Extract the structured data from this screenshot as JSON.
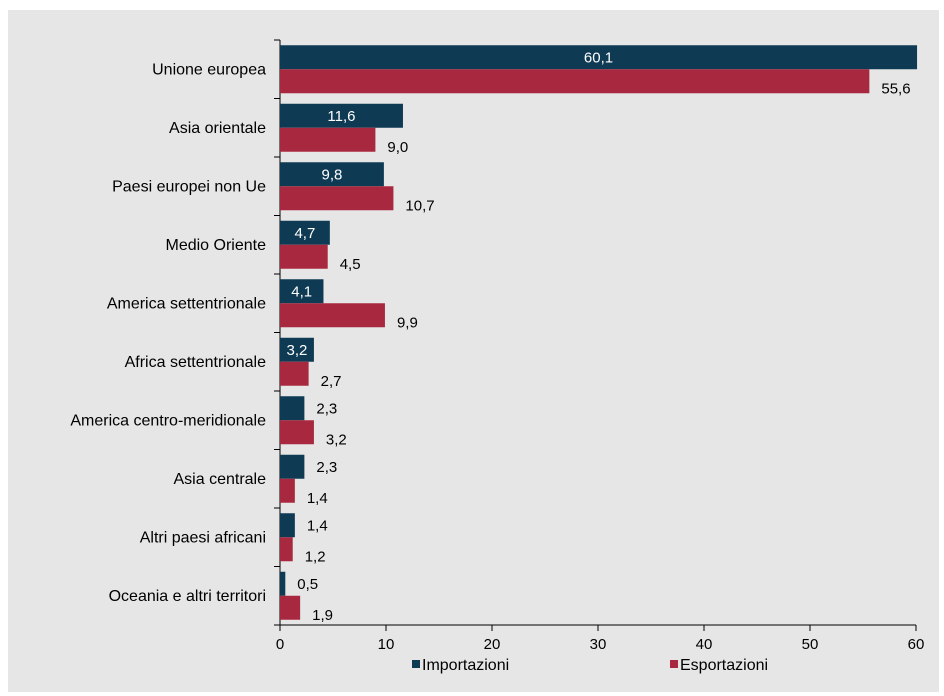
{
  "chart_data": {
    "type": "bar",
    "orientation": "horizontal",
    "categories": [
      "Unione europea",
      "Asia orientale",
      "Paesi europei non Ue",
      "Medio Oriente",
      "America settentrionale",
      "Africa settentrionale",
      "America centro-meridionale",
      "Asia centrale",
      "Altri paesi africani",
      "Oceania e altri territori"
    ],
    "series": [
      {
        "name": "Importazioni",
        "color": "#0e3a54",
        "values": [
          60.1,
          11.6,
          9.8,
          4.7,
          4.1,
          3.2,
          2.3,
          2.3,
          1.4,
          0.5
        ],
        "labels": [
          "60,1",
          "11,6",
          "9,8",
          "4,7",
          "4,1",
          "3,2",
          "2,3",
          "2,3",
          "1,4",
          "0,5"
        ]
      },
      {
        "name": "Esportazioni",
        "color": "#a8283f",
        "values": [
          55.6,
          9.0,
          10.7,
          4.5,
          9.9,
          2.7,
          3.2,
          1.4,
          1.2,
          1.9
        ],
        "labels": [
          "55,6",
          "9,0",
          "10,7",
          "4,5",
          "9,9",
          "2,7",
          "3,2",
          "1,4",
          "1,2",
          "1,9"
        ]
      }
    ],
    "xlim": [
      0,
      60
    ],
    "xticks": [
      0,
      10,
      20,
      30,
      40,
      50,
      60
    ],
    "tick_labels": [
      "0",
      "10",
      "20",
      "30",
      "40",
      "50",
      "60"
    ],
    "legend_position": "bottom",
    "grid": false
  }
}
